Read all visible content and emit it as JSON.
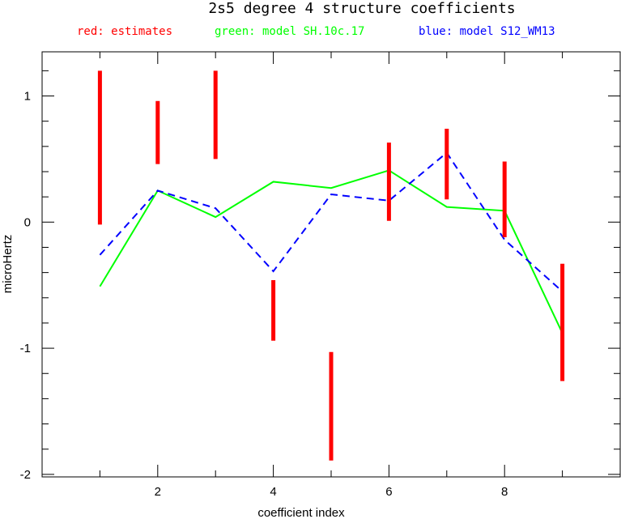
{
  "chart_data": {
    "type": "line",
    "title": "2s5 degree 4 structure coefficients",
    "xlabel": "coefficient index",
    "ylabel": "microHertz",
    "xlim": [
      0,
      10
    ],
    "ylim": [
      -2.02,
      1.35
    ],
    "xticks": [
      2,
      4,
      6,
      8
    ],
    "yticks": [
      -2,
      -1,
      0,
      1
    ],
    "legend": [
      {
        "label": "red: estimates",
        "color": "#ff0000"
      },
      {
        "label": "green: model SH.10c.17",
        "color": "#00ff00"
      },
      {
        "label": "blue: model S12_WM13",
        "color": "#0000ff"
      }
    ],
    "estimates": {
      "color": "#ff0000",
      "x": [
        1,
        2,
        3,
        4,
        5,
        6,
        7,
        8,
        9
      ],
      "low": [
        -0.02,
        0.46,
        0.5,
        -0.94,
        -1.89,
        0.01,
        0.18,
        -0.12,
        -1.26
      ],
      "high": [
        1.2,
        0.96,
        1.2,
        -0.46,
        -1.03,
        0.63,
        0.74,
        0.48,
        -0.33
      ]
    },
    "series": [
      {
        "color": "#00ff00",
        "dash": false,
        "x": [
          1,
          2,
          3,
          4,
          5,
          6,
          7,
          8,
          9
        ],
        "y": [
          -0.51,
          0.25,
          0.04,
          0.32,
          0.27,
          0.41,
          0.12,
          0.09,
          -0.88
        ]
      },
      {
        "color": "#0000ff",
        "dash": true,
        "x": [
          1,
          2,
          3,
          4,
          5,
          6,
          7,
          8,
          9
        ],
        "y": [
          -0.26,
          0.25,
          0.11,
          -0.39,
          0.22,
          0.17,
          0.55,
          -0.14,
          -0.55
        ]
      }
    ]
  }
}
